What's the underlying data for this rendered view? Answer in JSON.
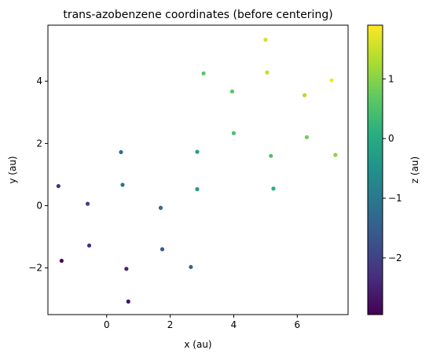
{
  "chart_data": {
    "type": "scatter",
    "title": "trans-azobenzene coordinates (before centering)",
    "xlabel": "x (au)",
    "ylabel": "y (au)",
    "xlim": [
      -1.85,
      7.6
    ],
    "ylim": [
      -3.5,
      5.8
    ],
    "xticks": [
      0,
      2,
      4,
      6
    ],
    "yticks": [
      -2,
      0,
      2,
      4
    ],
    "grid": false,
    "colorbar": {
      "label": "z (au)",
      "colormap": "viridis",
      "range": [
        -2.95,
        1.9
      ],
      "ticks": [
        -2,
        -1,
        0,
        1
      ]
    },
    "points": [
      {
        "x": 5.0,
        "y": 5.33,
        "z": 1.6
      },
      {
        "x": 5.05,
        "y": 4.28,
        "z": 1.45
      },
      {
        "x": 7.08,
        "y": 4.03,
        "z": 1.85
      },
      {
        "x": 6.23,
        "y": 3.55,
        "z": 1.35
      },
      {
        "x": 3.05,
        "y": 4.25,
        "z": 0.6
      },
      {
        "x": 3.95,
        "y": 3.67,
        "z": 0.65
      },
      {
        "x": 4.0,
        "y": 2.33,
        "z": 0.45
      },
      {
        "x": 6.3,
        "y": 2.2,
        "z": 0.85
      },
      {
        "x": 7.2,
        "y": 1.63,
        "z": 1.05
      },
      {
        "x": 5.17,
        "y": 1.6,
        "z": 0.55
      },
      {
        "x": 2.85,
        "y": 1.73,
        "z": -0.3
      },
      {
        "x": 5.25,
        "y": 0.55,
        "z": 0.1
      },
      {
        "x": 2.85,
        "y": 0.53,
        "z": -0.35
      },
      {
        "x": 0.45,
        "y": 1.72,
        "z": -1.2
      },
      {
        "x": 0.5,
        "y": 0.67,
        "z": -1.1
      },
      {
        "x": 1.7,
        "y": -0.07,
        "z": -1.3
      },
      {
        "x": -1.52,
        "y": 0.63,
        "z": -2.25
      },
      {
        "x": -0.6,
        "y": 0.06,
        "z": -2.0
      },
      {
        "x": -0.55,
        "y": -1.28,
        "z": -2.35
      },
      {
        "x": 1.75,
        "y": -1.4,
        "z": -1.55
      },
      {
        "x": 2.65,
        "y": -1.97,
        "z": -1.35
      },
      {
        "x": -1.42,
        "y": -1.77,
        "z": -2.85
      },
      {
        "x": 0.62,
        "y": -2.03,
        "z": -2.5
      },
      {
        "x": 0.68,
        "y": -3.08,
        "z": -2.75
      }
    ]
  }
}
